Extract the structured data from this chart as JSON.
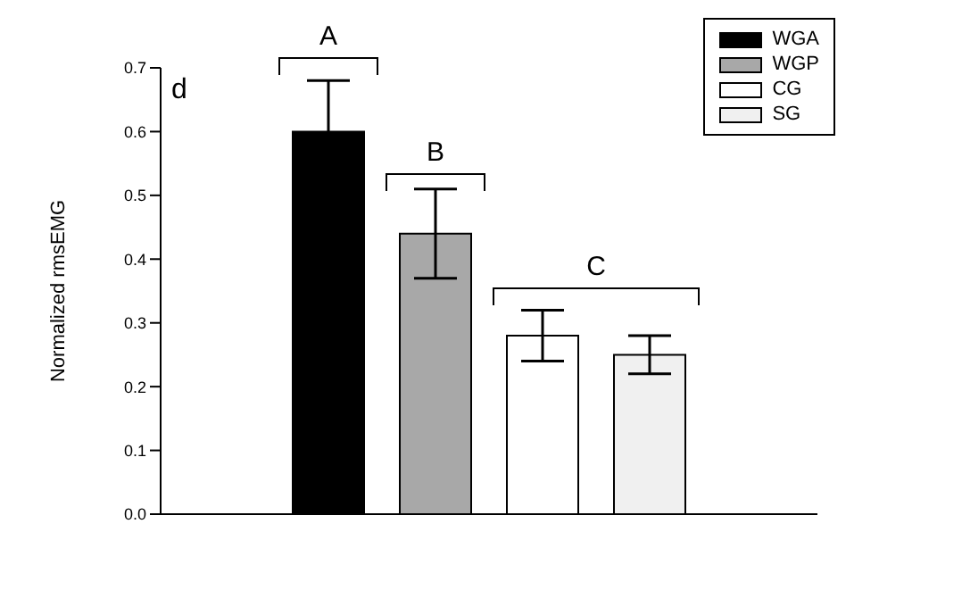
{
  "chart_data": {
    "type": "bar",
    "ylabel": "Normalized rmsEMG",
    "categories": [
      null
    ],
    "series": [
      {
        "name": "WGA",
        "color": "#000000",
        "values": [
          0.6
        ],
        "errors": [
          0.08
        ]
      },
      {
        "name": "WGP",
        "color": "#a8a8a8",
        "values": [
          0.44
        ],
        "errors": [
          0.07
        ]
      },
      {
        "name": "CG",
        "color": "#ffffff",
        "values": [
          0.28
        ],
        "errors": [
          0.04
        ]
      },
      {
        "name": "SG",
        "color": "#f0f0f0",
        "values": [
          0.25
        ],
        "errors": [
          0.03
        ]
      }
    ],
    "ylim": [
      0,
      0.7
    ],
    "yticks": [
      {
        "value": 0,
        "label": "0.0"
      },
      0.1,
      0.2,
      0.3,
      0.4,
      0.5,
      0.6,
      0.7
    ],
    "grid": false,
    "legend": "top right",
    "annotations": [
      "d",
      "A",
      "B",
      "C"
    ]
  }
}
